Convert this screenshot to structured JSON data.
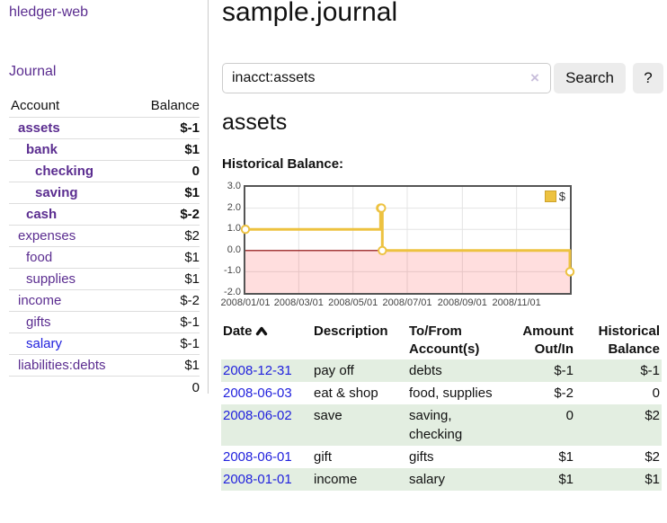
{
  "sidebar": {
    "brand": "hledger-web",
    "journal_link": "Journal",
    "accounts_table": {
      "col_account": "Account",
      "col_balance": "Balance",
      "rows": [
        {
          "label": "assets",
          "indent": 1,
          "bold": true,
          "balance": "$-1",
          "negative": true
        },
        {
          "label": "bank",
          "indent": 2,
          "bold": true,
          "balance": "$1",
          "negative": false
        },
        {
          "label": "checking",
          "indent": 3,
          "bold": true,
          "balance": "0",
          "negative": false
        },
        {
          "label": "saving",
          "indent": 3,
          "bold": true,
          "balance": "$1",
          "negative": false
        },
        {
          "label": "cash",
          "indent": 2,
          "bold": true,
          "balance": "$-2",
          "negative": true
        },
        {
          "label": "expenses",
          "indent": 1,
          "bold": false,
          "balance": "$2",
          "negative": false
        },
        {
          "label": "food",
          "indent": 2,
          "bold": false,
          "balance": "$1",
          "negative": false
        },
        {
          "label": "supplies",
          "indent": 2,
          "bold": false,
          "balance": "$1",
          "negative": false
        },
        {
          "label": "income",
          "indent": 1,
          "bold": false,
          "balance": "$-2",
          "negative": true
        },
        {
          "label": "gifts",
          "indent": 2,
          "bold": false,
          "balance": "$-1",
          "negative": true
        },
        {
          "label": "salary",
          "indent": 2,
          "bold": false,
          "balance": "$-1",
          "negative": true,
          "link_unvisited": true
        },
        {
          "label": "liabilities:debts",
          "indent": 1,
          "bold": false,
          "balance": "$1",
          "negative": false
        }
      ],
      "total": "0"
    }
  },
  "header": {
    "title": "sample.journal"
  },
  "search": {
    "value": "inacct:assets",
    "clear_icon": "×",
    "button_label": "Search",
    "help_label": "?"
  },
  "main": {
    "account_heading": "assets",
    "chart_title": "Historical Balance:"
  },
  "chart_data": {
    "type": "line",
    "style": "step-post",
    "title": "Historical Balance",
    "series": [
      {
        "name": "$",
        "color": "#edc240",
        "points": [
          [
            "2008-01-01",
            1
          ],
          [
            "2008-06-01",
            2
          ],
          [
            "2008-06-02",
            2
          ],
          [
            "2008-06-03",
            0
          ],
          [
            "2008-12-31",
            -1
          ]
        ]
      }
    ],
    "x_range": [
      "2008-01-01",
      "2008-12-31"
    ],
    "ylim": [
      -2.0,
      3.0
    ],
    "yticks": [
      {
        "v": 3,
        "label": "3.0"
      },
      {
        "v": 2,
        "label": "2.0"
      },
      {
        "v": 1,
        "label": "1.0"
      },
      {
        "v": 0,
        "label": "0.0"
      },
      {
        "v": -1,
        "label": "-1.0"
      },
      {
        "v": -2,
        "label": "-2.0"
      }
    ],
    "xticks": [
      {
        "d": "2008-01-01",
        "label": "2008/01/01"
      },
      {
        "d": "2008-03-01",
        "label": "2008/03/01"
      },
      {
        "d": "2008-05-01",
        "label": "2008/05/01"
      },
      {
        "d": "2008-07-01",
        "label": "2008/07/01"
      },
      {
        "d": "2008-09-01",
        "label": "2008/09/01"
      },
      {
        "d": "2008-11-01",
        "label": "2008/11/01"
      }
    ],
    "legend": {
      "position": "top-right"
    },
    "grid": true,
    "negative_region_color": "#ffd9d9",
    "zero_line_color": "#8b0000"
  },
  "register": {
    "headers": {
      "date": "Date",
      "description": "Description",
      "accounts": "To/From Account(s)",
      "amount": "Amount Out/In",
      "balance": "Historical Balance"
    },
    "sort": "ascending",
    "rows": [
      {
        "date": "2008-12-31",
        "description": "pay off",
        "accounts": "debts",
        "amount": "$-1",
        "amount_negative": true,
        "balance": "$-1",
        "balance_negative": true
      },
      {
        "date": "2008-06-03",
        "description": "eat & shop",
        "accounts": "food, supplies",
        "amount": "$-2",
        "amount_negative": true,
        "balance": "0",
        "balance_negative": false
      },
      {
        "date": "2008-06-02",
        "description": "save",
        "accounts": "saving, checking",
        "amount": "0",
        "amount_negative": false,
        "balance": "$2",
        "balance_negative": false
      },
      {
        "date": "2008-06-01",
        "description": "gift",
        "accounts": "gifts",
        "amount": "$1",
        "amount_negative": false,
        "balance": "$2",
        "balance_negative": false
      },
      {
        "date": "2008-01-01",
        "description": "income",
        "accounts": "salary",
        "amount": "$1",
        "amount_negative": false,
        "balance": "$1",
        "balance_negative": false
      }
    ]
  },
  "colors": {
    "link_purple": "#5b2d90",
    "link_blue": "#2222dd",
    "negative_red": "#8b1a1a",
    "negative_muted": "#a86868",
    "row_stripe_green": "#e3eee1",
    "chart_gold": "#edc240"
  }
}
